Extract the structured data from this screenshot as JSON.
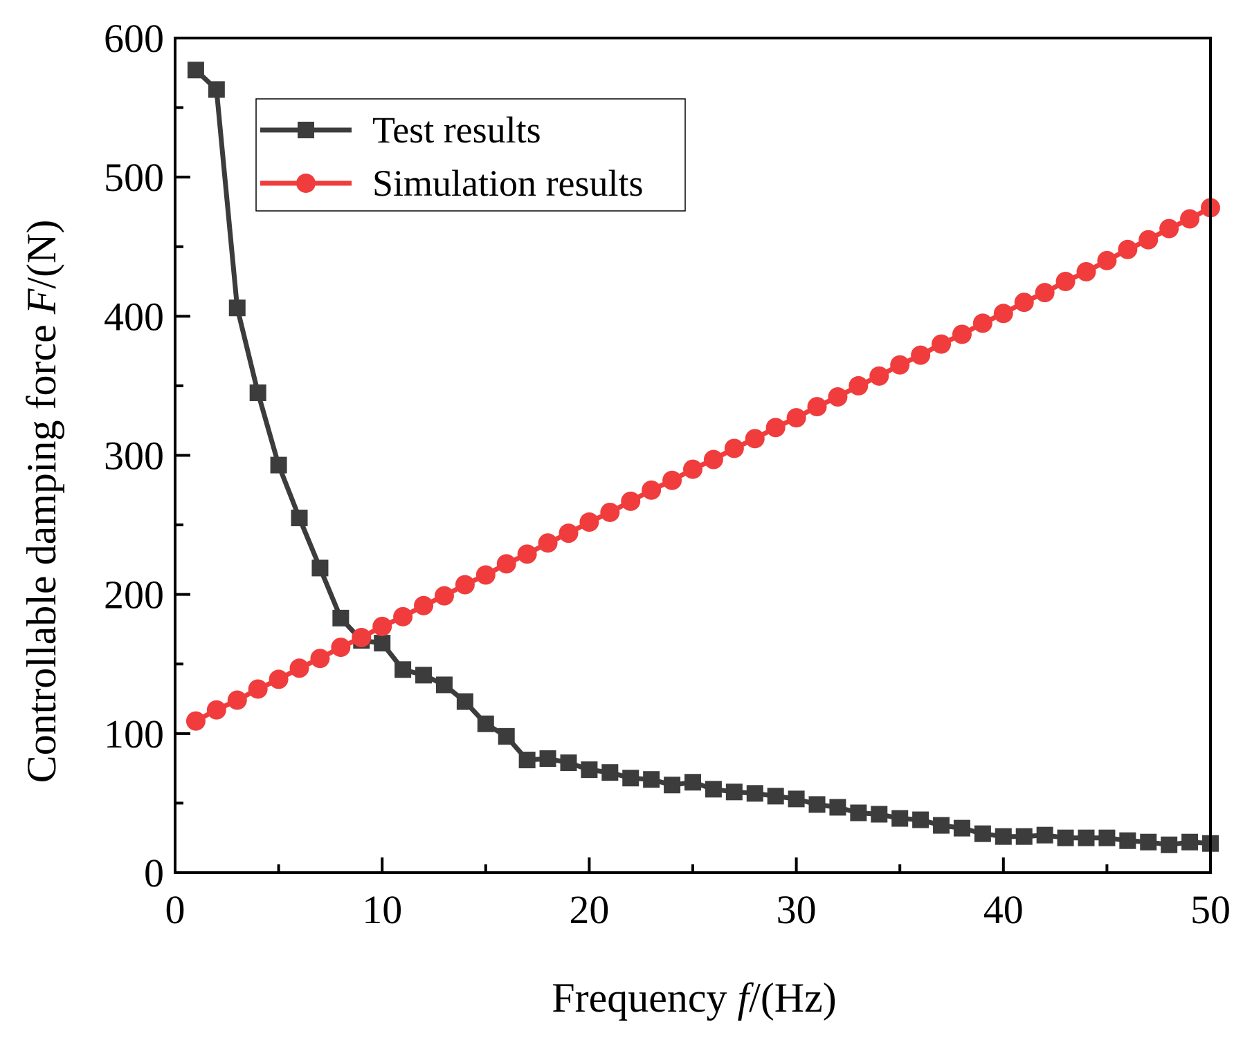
{
  "chart_data": {
    "type": "line",
    "title": "",
    "xlabel": {
      "prefix": "Frequency ",
      "var": "f",
      "suffix": "/(Hz)"
    },
    "ylabel": {
      "prefix": "Controllable damping force ",
      "var": "F",
      "suffix": "/(N)"
    },
    "xlim": [
      0,
      50
    ],
    "ylim": [
      0,
      600
    ],
    "xticks": [
      0,
      10,
      20,
      30,
      40,
      50
    ],
    "yticks": [
      0,
      100,
      200,
      300,
      400,
      500,
      600
    ],
    "grid": false,
    "legend_position": "top-left",
    "x": [
      1,
      2,
      3,
      4,
      5,
      6,
      7,
      8,
      9,
      10,
      11,
      12,
      13,
      14,
      15,
      16,
      17,
      18,
      19,
      20,
      21,
      22,
      23,
      24,
      25,
      26,
      27,
      28,
      29,
      30,
      31,
      32,
      33,
      34,
      35,
      36,
      37,
      38,
      39,
      40,
      41,
      42,
      43,
      44,
      45,
      46,
      47,
      48,
      49,
      50
    ],
    "series": [
      {
        "name": "Test results",
        "color": "#3c3c3c",
        "marker": "square",
        "values": [
          577,
          563,
          406,
          345,
          293,
          255,
          219,
          183,
          167,
          165,
          146,
          142,
          135,
          123,
          107,
          98,
          81,
          82,
          79,
          74,
          72,
          68,
          67,
          63,
          65,
          60,
          58,
          57,
          55,
          53,
          49,
          47,
          43,
          42,
          39,
          38,
          34,
          32,
          28,
          26,
          26,
          27,
          25,
          25,
          25,
          23,
          22,
          20,
          22,
          21
        ]
      },
      {
        "name": "Simulation results",
        "color": "#f03c3c",
        "marker": "circle",
        "values": [
          109,
          117,
          124,
          132,
          139,
          147,
          154,
          162,
          169,
          177,
          184,
          192,
          199,
          207,
          214,
          222,
          229,
          237,
          244,
          252,
          259,
          267,
          275,
          282,
          290,
          297,
          305,
          312,
          320,
          327,
          335,
          342,
          350,
          357,
          365,
          372,
          380,
          387,
          395,
          402,
          410,
          417,
          425,
          432,
          440,
          448,
          455,
          463,
          470,
          478
        ]
      }
    ]
  }
}
